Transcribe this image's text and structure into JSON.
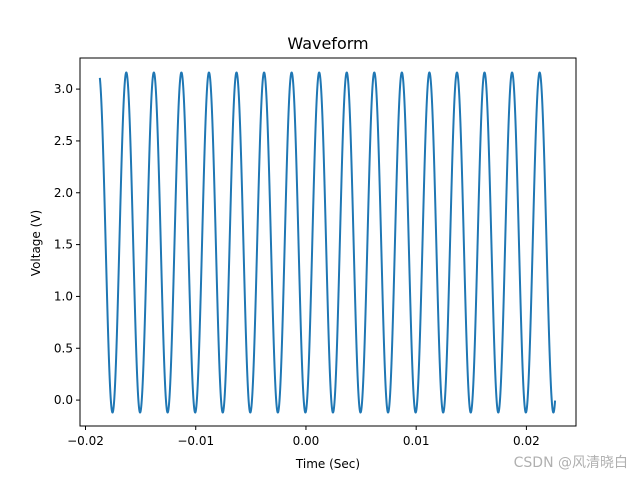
{
  "chart_data": {
    "type": "line",
    "title": "Waveform",
    "xlabel": "Time (Sec)",
    "ylabel": "Voltage (V)",
    "xlim": [
      -0.0205,
      0.0245
    ],
    "ylim": [
      -0.25,
      3.3
    ],
    "xticks": [
      -0.02,
      -0.01,
      0.0,
      0.01,
      0.02
    ],
    "xtick_labels": [
      "−0.02",
      "−0.01",
      "0.00",
      "0.01",
      "0.02"
    ],
    "yticks": [
      0.0,
      0.5,
      1.0,
      1.5,
      2.0,
      2.5,
      3.0
    ],
    "ytick_labels": [
      "0.0",
      "0.5",
      "1.0",
      "1.5",
      "2.0",
      "2.5",
      "3.0"
    ],
    "grid": false,
    "series": [
      {
        "name": "waveform",
        "color": "#1f77b4",
        "function": "sine",
        "x_start": -0.0187,
        "x_end": 0.0226,
        "offset": 1.52,
        "amplitude": 1.64,
        "frequency_hz": 400,
        "peak_at_x": -0.0163,
        "samples": 2400
      }
    ]
  },
  "watermark": "CSDN @风清晓白",
  "colors": {
    "line": "#1f77b4",
    "axes": "#000000",
    "background": "#ffffff"
  }
}
